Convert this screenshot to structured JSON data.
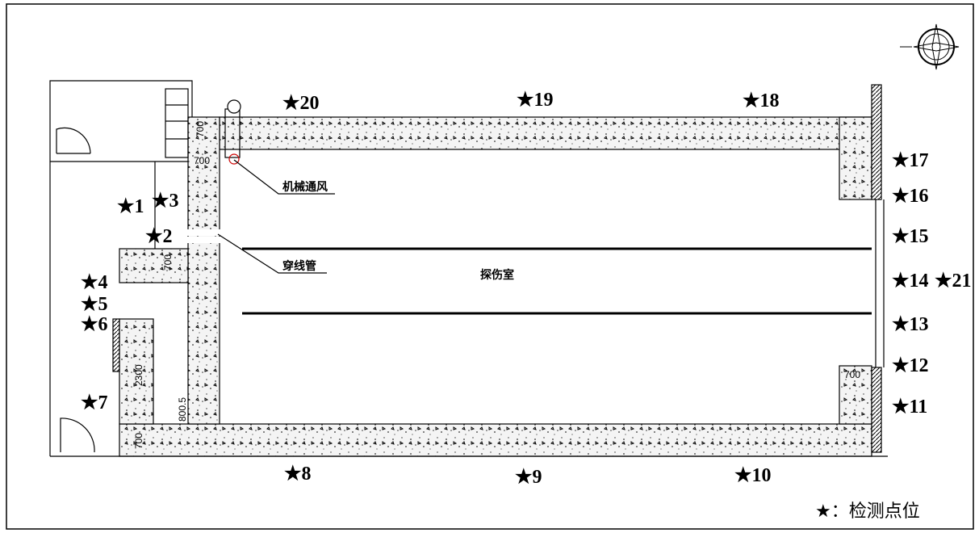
{
  "points": [
    "★1",
    "★3",
    "★2",
    "★4",
    "★5",
    "★6",
    "★7",
    "★8",
    "★9",
    "★10",
    "★11",
    "★12",
    "★13",
    "★14",
    "★21",
    "★15",
    "★16",
    "★17",
    "★18",
    "★19",
    "★20"
  ],
  "dimensions": [
    "700",
    "700",
    "700",
    "2300",
    "800.5",
    "700",
    "700"
  ],
  "labels": {
    "ventilation": "机械通风",
    "conduit": "穿线管",
    "room": "探伤室"
  },
  "legend": "★：检测点位"
}
